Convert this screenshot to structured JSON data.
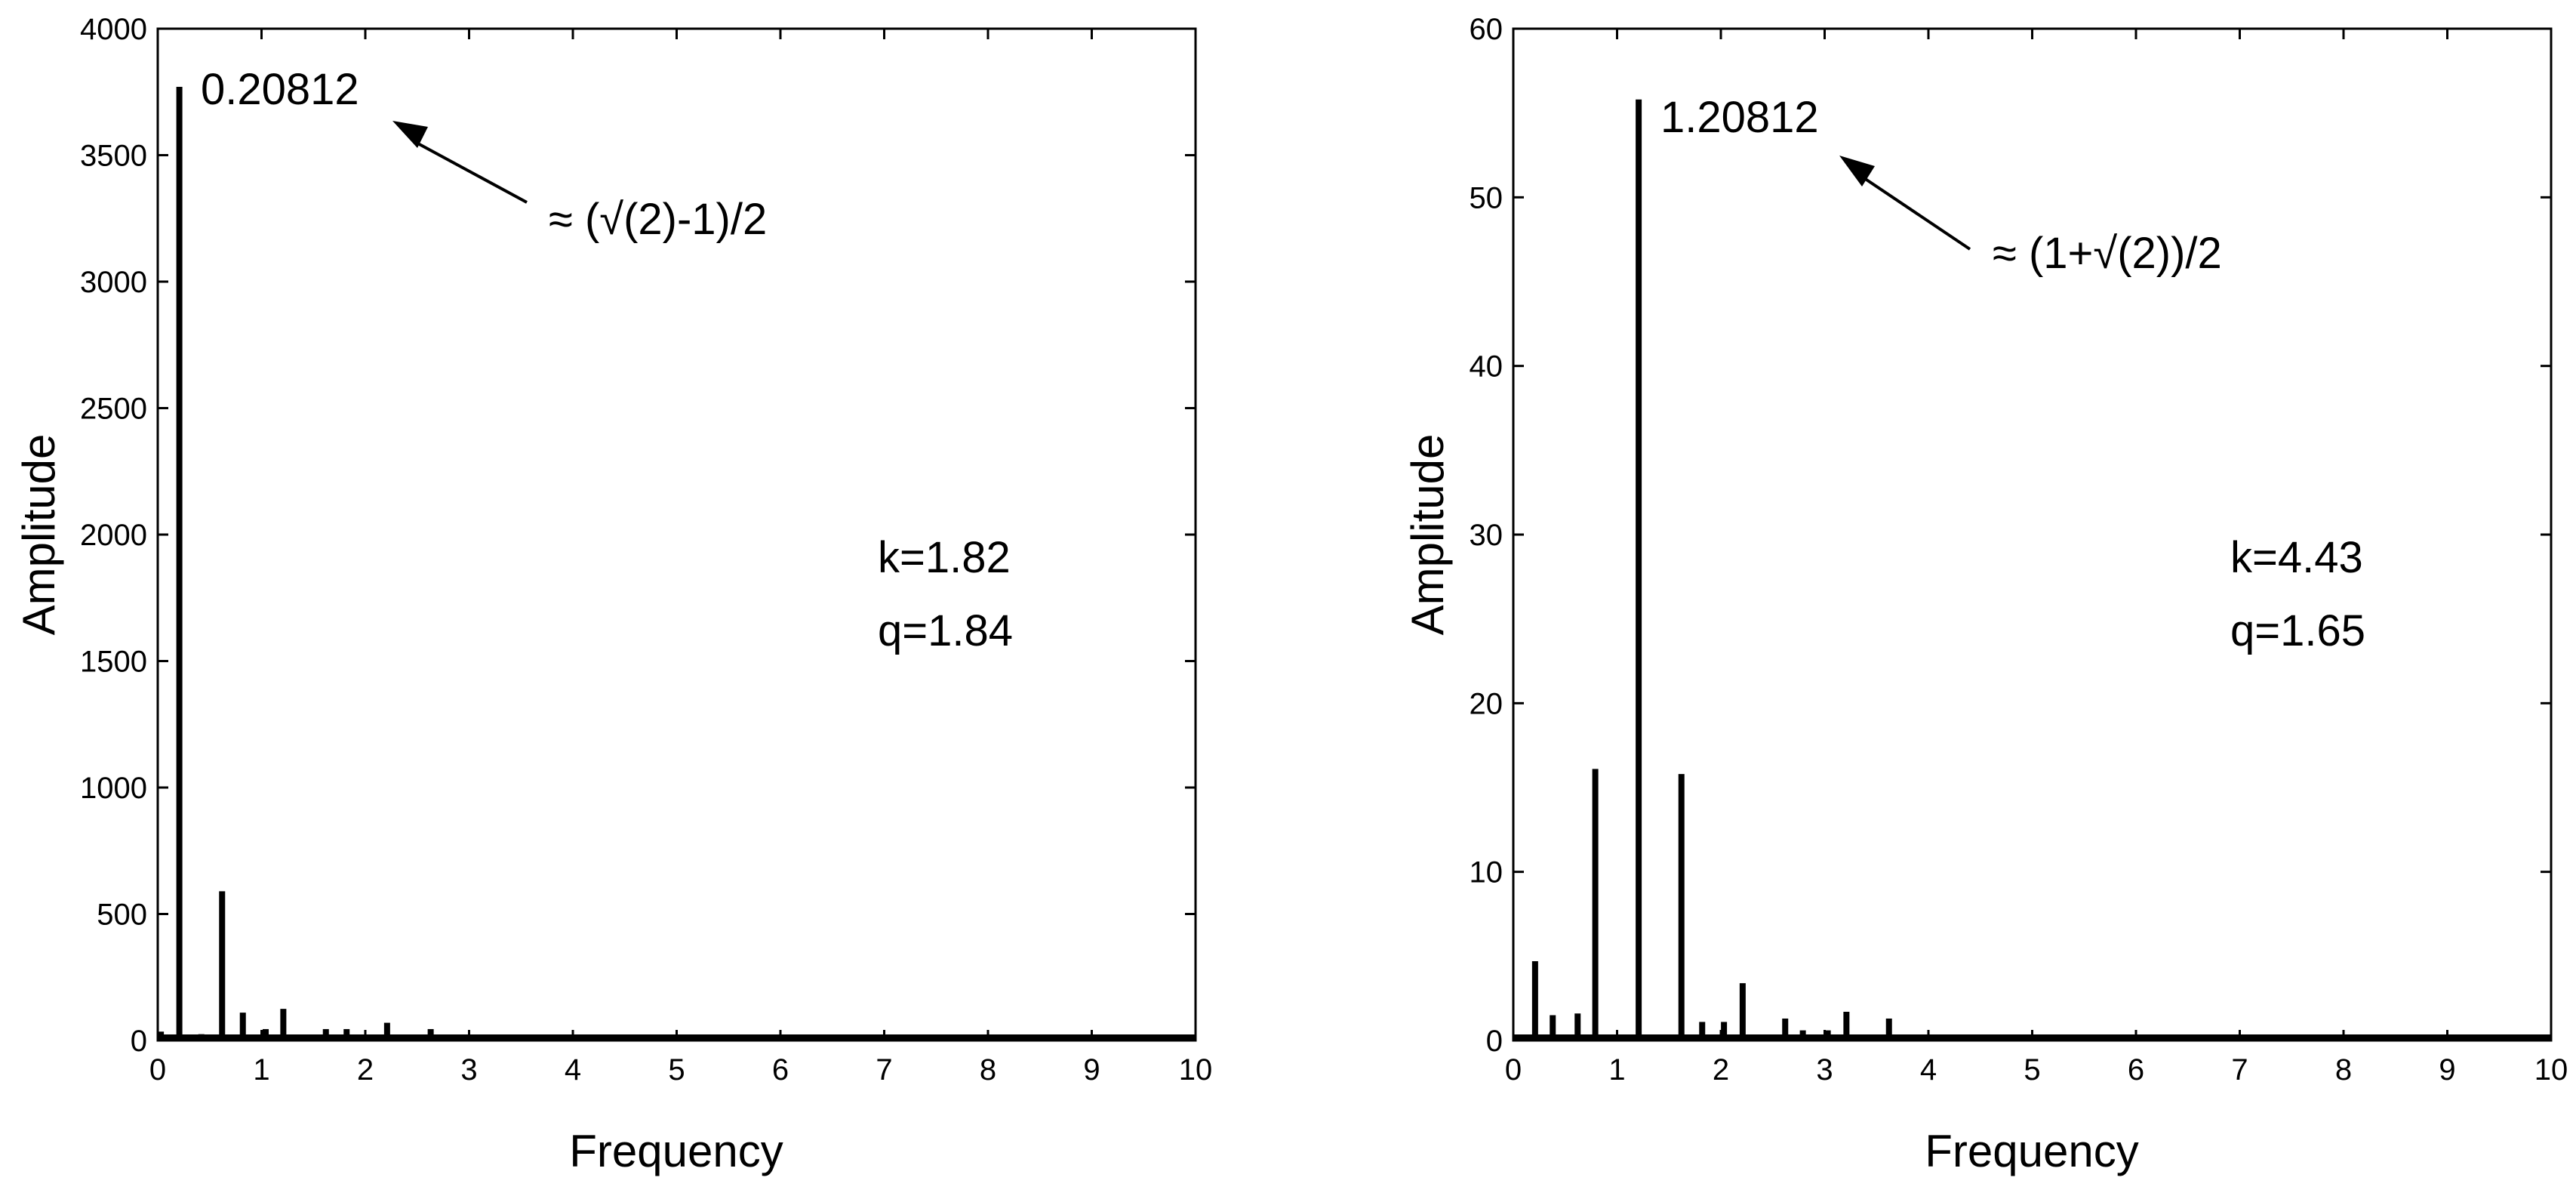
{
  "chart_data": [
    {
      "type": "line",
      "xlabel": "Frequency",
      "ylabel": "Amplitude",
      "xlim": [
        0,
        10
      ],
      "ylim": [
        0,
        4000
      ],
      "xticks": [
        "0",
        "1",
        "2",
        "3",
        "4",
        "5",
        "6",
        "7",
        "8",
        "9",
        "10"
      ],
      "yticks": [
        "0",
        "500",
        "1000",
        "1500",
        "2000",
        "2500",
        "3000",
        "3500",
        "4000"
      ],
      "grid": false,
      "color": "#000000",
      "peaks": [
        {
          "x": 0.03,
          "y": 35
        },
        {
          "x": 0.20812,
          "y": 3770
        },
        {
          "x": 0.42,
          "y": 25
        },
        {
          "x": 0.62,
          "y": 590
        },
        {
          "x": 0.82,
          "y": 110
        },
        {
          "x": 1.04,
          "y": 45
        },
        {
          "x": 1.21,
          "y": 125
        },
        {
          "x": 1.42,
          "y": 20
        },
        {
          "x": 1.62,
          "y": 45
        },
        {
          "x": 1.82,
          "y": 45
        },
        {
          "x": 2.21,
          "y": 70
        },
        {
          "x": 2.63,
          "y": 45
        }
      ],
      "peak_label": "0.20812",
      "arrow_label": "≈ (√(2)-1)/2",
      "params": [
        "k=1.82",
        "q=1.84"
      ]
    },
    {
      "type": "line",
      "xlabel": "Frequency",
      "ylabel": "Amplitude",
      "xlim": [
        0,
        10
      ],
      "ylim": [
        0,
        60
      ],
      "xticks": [
        "0",
        "1",
        "2",
        "3",
        "4",
        "5",
        "6",
        "7",
        "8",
        "9",
        "10"
      ],
      "yticks": [
        "0",
        "10",
        "20",
        "30",
        "40",
        "50",
        "60"
      ],
      "grid": false,
      "color": "#000000",
      "peaks": [
        {
          "x": 0.21,
          "y": 4.7
        },
        {
          "x": 0.38,
          "y": 1.5
        },
        {
          "x": 0.62,
          "y": 1.6
        },
        {
          "x": 0.79,
          "y": 16.1
        },
        {
          "x": 1.20812,
          "y": 55.8
        },
        {
          "x": 1.62,
          "y": 15.8
        },
        {
          "x": 1.82,
          "y": 1.1
        },
        {
          "x": 2.03,
          "y": 1.1
        },
        {
          "x": 2.21,
          "y": 3.4
        },
        {
          "x": 2.62,
          "y": 1.3
        },
        {
          "x": 2.79,
          "y": 0.6
        },
        {
          "x": 3.03,
          "y": 0.6
        },
        {
          "x": 3.21,
          "y": 1.7
        },
        {
          "x": 3.62,
          "y": 1.3
        }
      ],
      "peak_label": "1.20812",
      "arrow_label": "≈ (1+√(2))/2",
      "params": [
        "k=4.43",
        "q=1.65"
      ]
    }
  ]
}
